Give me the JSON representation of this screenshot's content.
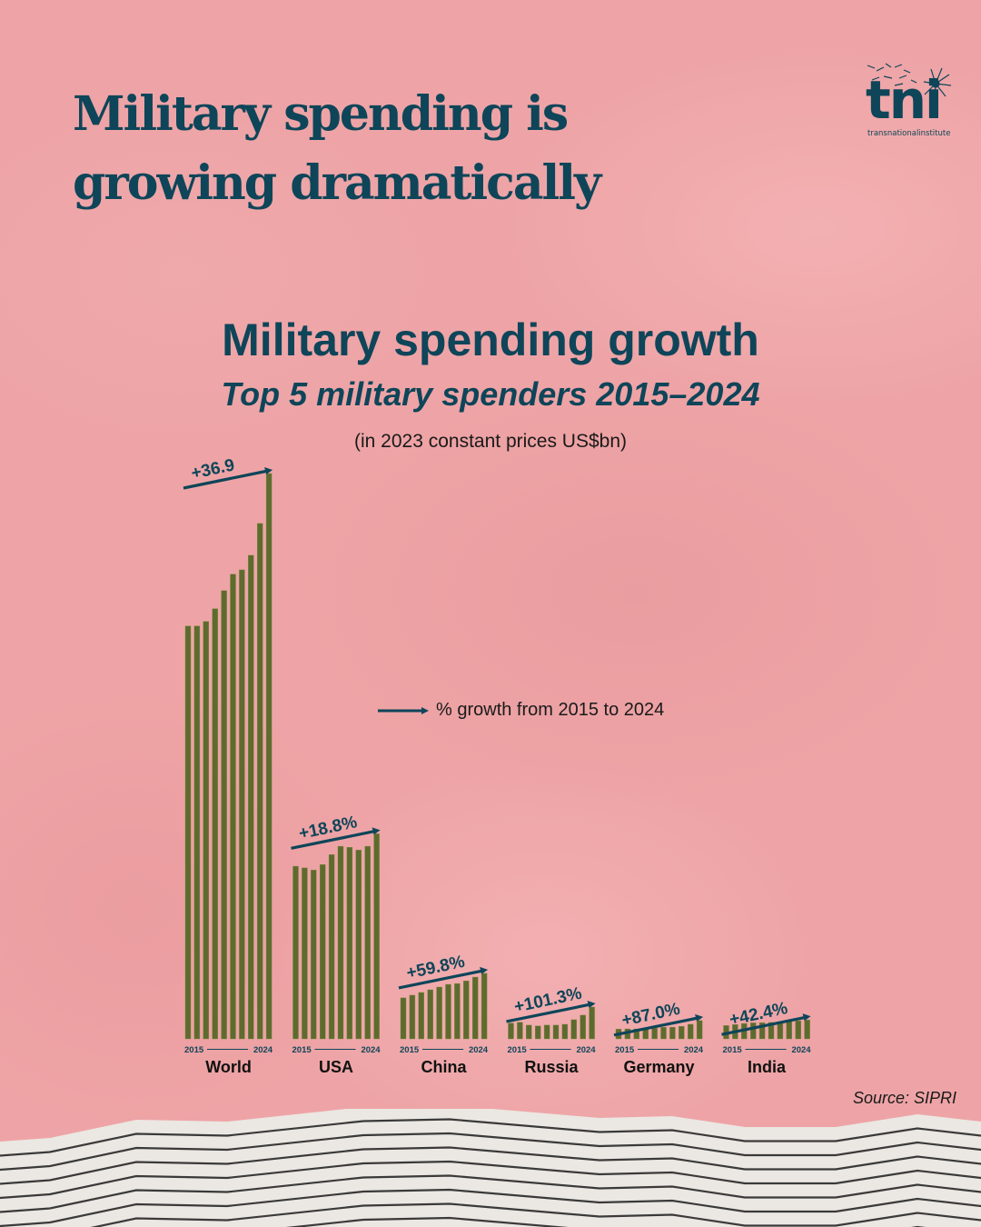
{
  "headline": [
    "Military spending is",
    "growing dramatically"
  ],
  "logo": {
    "mark": "tni",
    "subtitle": "transnationalinstitute",
    "icon": "dandelion-icon"
  },
  "legend": {
    "icon": "arrow-right-icon",
    "label": "% growth from 2015 to 2024"
  },
  "source": "Source: SIPRI",
  "colors": {
    "bar": "#5e6b2e",
    "accent": "#0e4559",
    "background": "#eea4a6",
    "footer": "#ebe7e2"
  },
  "chart_data": {
    "type": "bar",
    "title": "Military spending growth",
    "subtitle": "Top 5 military spenders 2015–2024",
    "unit_note": "(in 2023 constant prices US$bn)",
    "xlabel": "",
    "ylabel": "",
    "years": [
      2015,
      2016,
      2017,
      2018,
      2019,
      2020,
      2021,
      2022,
      2023,
      2024
    ],
    "axis_start_label": "2015",
    "axis_end_label": "2024",
    "ylim": [
      0,
      2800
    ],
    "grid": false,
    "legend_position": "center",
    "series": [
      {
        "name": "World",
        "growth_label": "+36.9",
        "values": [
          1985,
          1985,
          2007,
          2068,
          2155,
          2234,
          2255,
          2325,
          2478,
          2718
        ]
      },
      {
        "name": "USA",
        "growth_label": "+18.8%",
        "values": [
          830,
          822,
          812,
          838,
          886,
          926,
          921,
          908,
          926,
          986
        ]
      },
      {
        "name": "China",
        "growth_label": "+59.8%",
        "values": [
          197,
          210,
          223,
          236,
          249,
          262,
          266,
          279,
          297,
          315
        ]
      },
      {
        "name": "Russia",
        "growth_label": "+101.3%",
        "values": [
          76,
          80,
          66,
          62,
          66,
          66,
          70,
          92,
          114,
          153
        ]
      },
      {
        "name": "Germany",
        "growth_label": "+87.0%",
        "values": [
          47,
          48,
          48,
          48,
          52,
          56,
          56,
          60,
          70,
          88
        ]
      },
      {
        "name": "India",
        "growth_label": "+42.4%",
        "values": [
          64,
          69,
          74,
          77,
          78,
          79,
          80,
          84,
          87,
          91
        ]
      }
    ]
  }
}
